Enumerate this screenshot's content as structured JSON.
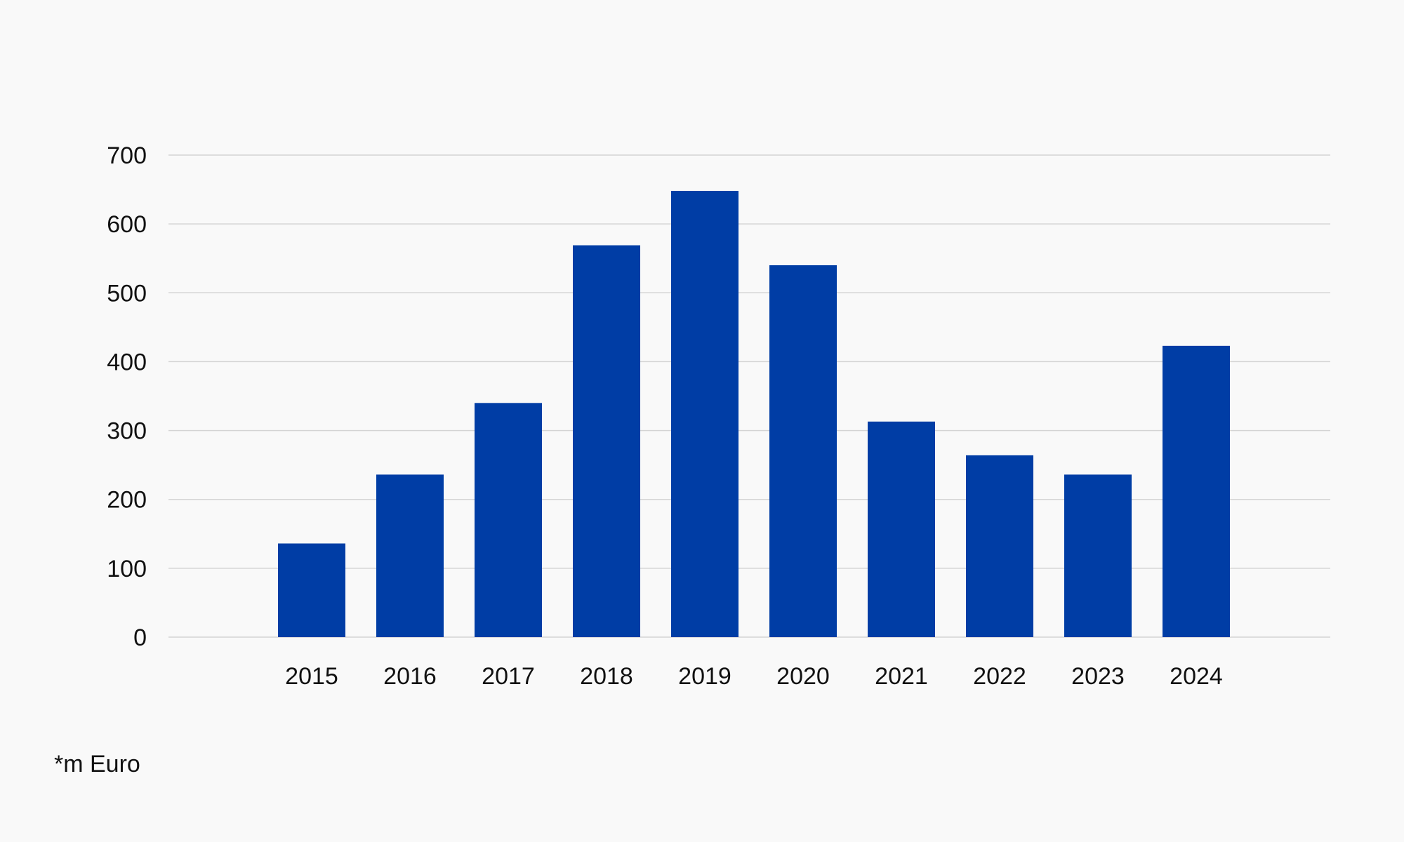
{
  "chart_data": {
    "type": "bar",
    "categories": [
      "2015",
      "2016",
      "2017",
      "2018",
      "2019",
      "2020",
      "2021",
      "2022",
      "2023",
      "2024"
    ],
    "values": [
      136,
      236,
      340,
      569,
      648,
      540,
      313,
      264,
      236,
      423
    ],
    "title": "",
    "xlabel": "",
    "ylabel": "",
    "ylim": [
      0,
      700
    ],
    "yticks": [
      "0",
      "100",
      "200",
      "300",
      "400",
      "500",
      "600",
      "700"
    ],
    "grid": true,
    "legend": "none",
    "colors": {
      "bar": "#003DA5",
      "grid": "#d4d4d4",
      "background": "#f9f9f9",
      "text": "#111111"
    }
  },
  "footnote": "*m Euro"
}
